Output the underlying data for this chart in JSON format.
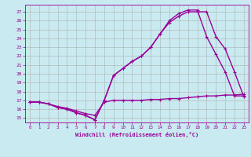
{
  "background_color": "#c8eaf0",
  "grid_color": "#b0b0b0",
  "line_color": "#990099",
  "xlim": [
    -0.5,
    23.5
  ],
  "ylim": [
    14.5,
    27.8
  ],
  "xticks": [
    0,
    1,
    2,
    3,
    4,
    5,
    6,
    7,
    8,
    9,
    10,
    11,
    12,
    13,
    14,
    15,
    16,
    17,
    18,
    19,
    20,
    21,
    22,
    23
  ],
  "yticks": [
    15,
    16,
    17,
    18,
    19,
    20,
    21,
    22,
    23,
    24,
    25,
    26,
    27
  ],
  "xlabel": "Windchill (Refroidissement éolien,°C)",
  "line1_x": [
    0,
    1,
    2,
    3,
    4,
    5,
    6,
    7,
    8,
    9,
    10,
    11,
    12,
    13,
    14,
    15,
    16,
    17,
    18,
    19,
    20,
    21,
    22,
    23
  ],
  "line1_y": [
    16.8,
    16.8,
    16.6,
    16.3,
    16.1,
    15.8,
    15.5,
    15.3,
    16.8,
    17.0,
    17.0,
    17.0,
    17.0,
    17.1,
    17.1,
    17.2,
    17.2,
    17.3,
    17.4,
    17.5,
    17.5,
    17.6,
    17.6,
    17.7
  ],
  "line2_x": [
    0,
    1,
    2,
    3,
    4,
    5,
    6,
    7,
    8,
    9,
    10,
    11,
    12,
    13,
    14,
    15,
    16,
    17,
    18,
    19,
    20,
    21,
    22,
    23
  ],
  "line2_y": [
    16.8,
    16.8,
    16.6,
    16.2,
    16.0,
    15.6,
    15.3,
    14.8,
    17.0,
    19.8,
    20.6,
    21.4,
    22.0,
    23.0,
    24.5,
    25.8,
    26.5,
    27.0,
    27.0,
    27.0,
    24.2,
    22.8,
    20.2,
    17.4
  ],
  "line3_x": [
    0,
    1,
    2,
    3,
    4,
    5,
    6,
    7,
    8,
    9,
    10,
    11,
    12,
    13,
    14,
    15,
    16,
    17,
    18,
    19,
    20,
    21,
    22,
    23
  ],
  "line3_y": [
    16.8,
    16.8,
    16.6,
    16.2,
    16.0,
    15.6,
    15.3,
    14.8,
    17.0,
    19.8,
    20.6,
    21.4,
    22.0,
    23.0,
    24.5,
    26.0,
    26.8,
    27.2,
    27.2,
    24.2,
    22.2,
    20.2,
    17.5,
    17.5
  ]
}
